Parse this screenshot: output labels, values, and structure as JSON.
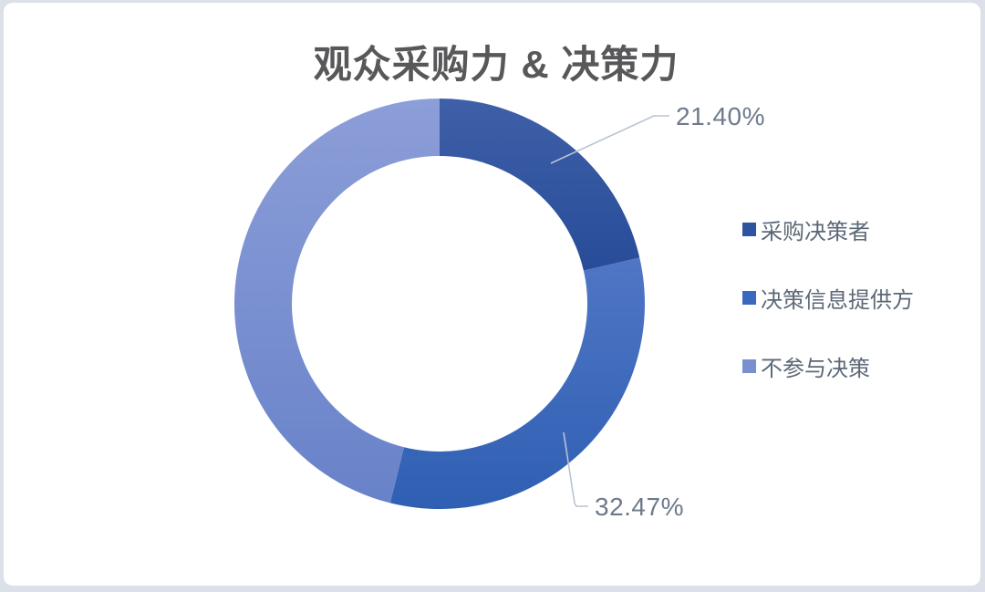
{
  "page": {
    "background_color": "#dce1e9",
    "card_color": "#ffffff"
  },
  "colors": {
    "title_text": "#58585a",
    "data_label_text": "#6e7a8b",
    "legend_text": "#5c6877",
    "leader_line": "#b8c4d4"
  },
  "chart_data": {
    "type": "pie",
    "subtype": "donut",
    "title": "观众采购力 & 决策力",
    "legend_position": "right",
    "donut_hole_ratio": 0.72,
    "start_angle_deg": 0,
    "direction": "clockwise",
    "categories": [
      "采购决策者",
      "决策信息提供方",
      "不参与决策"
    ],
    "values": [
      21.4,
      32.47,
      46.13
    ],
    "series": [
      {
        "name": "采购决策者",
        "value": 21.4,
        "data_label": "21.40%",
        "color_top": "#3f60a8",
        "color_bottom": "#284c99",
        "legend_swatch": "#2d549e"
      },
      {
        "name": "决策信息提供方",
        "value": 32.47,
        "data_label": "32.47%",
        "color_top": "#5076c5",
        "color_bottom": "#2f5fb3",
        "legend_swatch": "#3a68be"
      },
      {
        "name": "不参与决策",
        "value": 46.13,
        "data_label": "",
        "color_top": "#8c9ed8",
        "color_bottom": "#6882c9",
        "legend_swatch": "#7890d0"
      }
    ]
  }
}
